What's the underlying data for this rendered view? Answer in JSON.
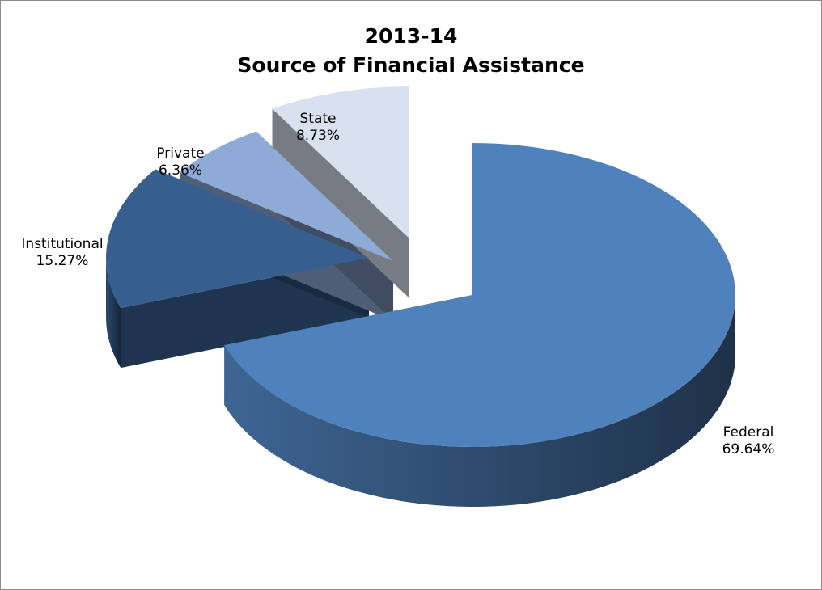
{
  "chart_data": {
    "type": "pie",
    "title": "2013-14",
    "subtitle": "Source of Financial Assistance",
    "slices": [
      {
        "label": "Federal",
        "value": 69.64,
        "value_label": "69.64%",
        "color": "#4f81bd"
      },
      {
        "label": "Institutional",
        "value": 15.27,
        "value_label": "15.27%",
        "color": "#365e8f"
      },
      {
        "label": "Private",
        "value": 6.36,
        "value_label": "6.36%",
        "color": "#8eaad6"
      },
      {
        "label": "State",
        "value": 8.73,
        "value_label": "8.73%",
        "color": "#d9e1f0"
      }
    ],
    "style": "3d-exploded",
    "legend": "none"
  }
}
